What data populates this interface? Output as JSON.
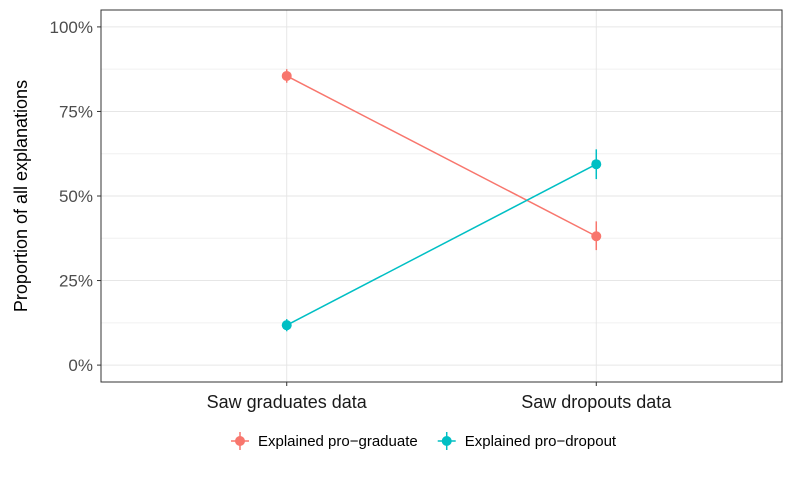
{
  "chart_data": {
    "type": "line",
    "categories": [
      "Saw graduates data",
      "Saw dropouts data"
    ],
    "ylabel": "Proportion of all explanations",
    "xlabel": "",
    "ylim": [
      0,
      1
    ],
    "y_ticks": [
      {
        "value": 0,
        "label": "0%"
      },
      {
        "value": 0.25,
        "label": "25%"
      },
      {
        "value": 0.5,
        "label": "50%"
      },
      {
        "value": 0.75,
        "label": "75%"
      },
      {
        "value": 1,
        "label": "100%"
      }
    ],
    "grid": true,
    "legend_position": "bottom",
    "series": [
      {
        "name": "Explained pro−graduate",
        "color": "#F8766D",
        "values": [
          0.855,
          0.381
        ],
        "error_low": [
          0.835,
          0.34
        ],
        "error_high": [
          0.875,
          0.425
        ]
      },
      {
        "name": "Explained pro−dropout",
        "color": "#00BFC4",
        "values": [
          0.118,
          0.594
        ],
        "error_low": [
          0.1,
          0.55
        ],
        "error_high": [
          0.136,
          0.638
        ]
      }
    ]
  }
}
